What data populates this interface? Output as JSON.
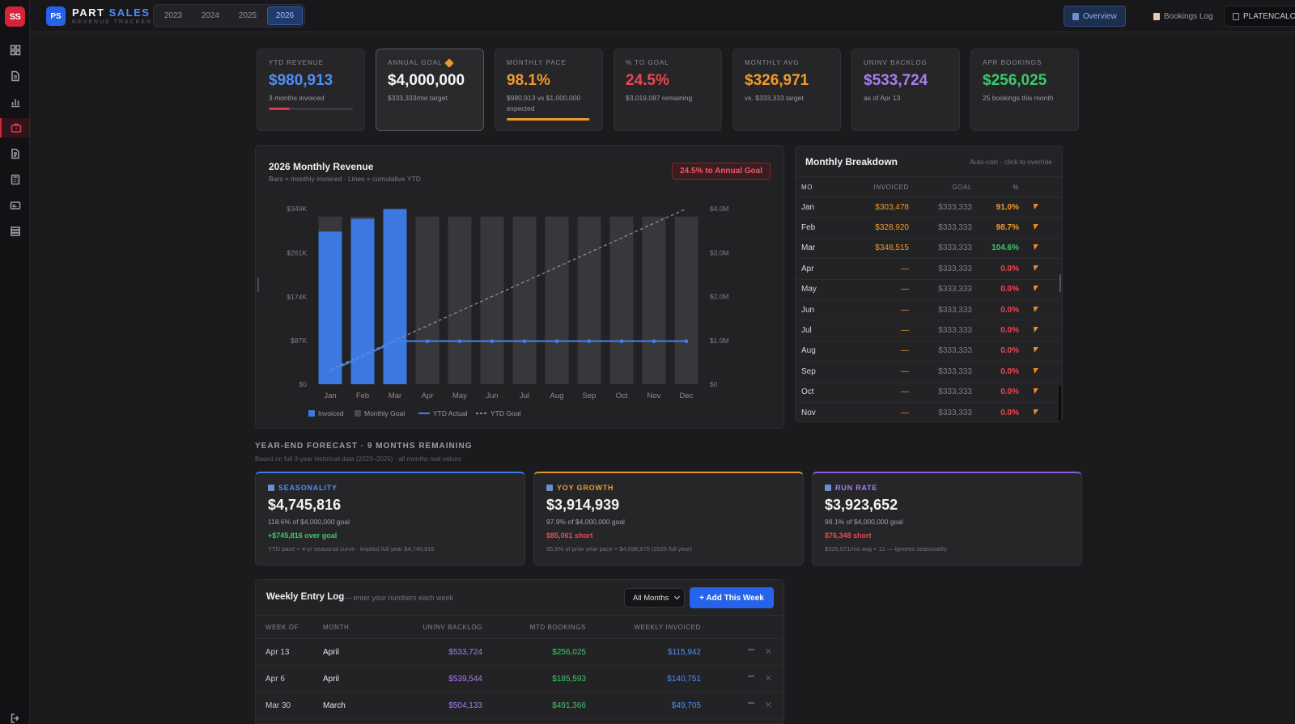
{
  "rail": {
    "logo": "SS",
    "items": [
      "grid-icon",
      "document-icon",
      "bar-chart-icon",
      "briefcase-icon",
      "file-icon",
      "calculator-icon",
      "card-icon",
      "database-icon"
    ],
    "active_index": 3,
    "bottom": "logout-icon"
  },
  "header": {
    "badge": "PS",
    "title_part1": "PART",
    "title_part2": "SALES",
    "subtitle": "REVENUE TRACKER",
    "years": [
      "2023",
      "2024",
      "2025",
      "2026"
    ],
    "active_year": "2026",
    "nav": {
      "overview": "Overview",
      "bookings": "Bookings Log",
      "platen": "PLATENCALC"
    }
  },
  "kpis": [
    {
      "label": "YTD REVENUE",
      "value": "$980,913",
      "sub": "3 months invoiced",
      "color": "#4f8df7",
      "progress": 0.25,
      "bar_color": "#e0364c"
    },
    {
      "label": "ANNUAL GOAL",
      "value": "$4,000,000",
      "sub": "$333,333/mo target",
      "color": "#f4f4f6"
    },
    {
      "label": "MONTHLY PACE",
      "value": "98.1%",
      "sub": "$980,913 vs $1,000,000 expected",
      "color": "#f09a2c",
      "progress": 0.981,
      "bar_color": "#f09a2c"
    },
    {
      "label": "% TO GOAL",
      "value": "24.5%",
      "sub": "$3,019,087 remaining",
      "color": "#ef4552"
    },
    {
      "label": "MONTHLY AVG",
      "value": "$326,971",
      "sub": "vs. $333,333 target",
      "color": "#f09a2c"
    },
    {
      "label": "UNINV BACKLOG",
      "value": "$533,724",
      "sub": "as of Apr 13",
      "color": "#a77ef0"
    },
    {
      "label": "APR BOOKINGS",
      "value": "$256,025",
      "sub": "25 bookings this month",
      "color": "#3cc96a"
    }
  ],
  "chart_panel": {
    "title": "2026 Monthly Revenue",
    "subtitle": "Bars = monthly invoiced · Lines = cumulative YTD",
    "badge": "24.5% to Annual Goal"
  },
  "chart_data": {
    "type": "bar",
    "categories": [
      "Jan",
      "Feb",
      "Mar",
      "Apr",
      "May",
      "Jun",
      "Jul",
      "Aug",
      "Sep",
      "Oct",
      "Nov",
      "Dec"
    ],
    "series": [
      {
        "name": "Invoiced",
        "type": "bar",
        "axis": "left",
        "values": [
          303478,
          328920,
          348515,
          0,
          0,
          0,
          0,
          0,
          0,
          0,
          0,
          0
        ]
      },
      {
        "name": "Monthly Goal",
        "type": "bar",
        "axis": "left",
        "values": [
          333333,
          333333,
          333333,
          333333,
          333333,
          333333,
          333333,
          333333,
          333333,
          333333,
          333333,
          333333
        ]
      },
      {
        "name": "YTD Actual",
        "type": "line",
        "axis": "right",
        "values": [
          303478,
          632398,
          980913,
          980913,
          980913,
          980913,
          980913,
          980913,
          980913,
          980913,
          980913,
          980913
        ]
      },
      {
        "name": "YTD Goal",
        "type": "line",
        "axis": "right",
        "style": "dashed",
        "values": [
          333333,
          666667,
          1000000,
          1333333,
          1666667,
          2000000,
          2333333,
          2666667,
          3000000,
          3333333,
          3666667,
          4000000
        ]
      }
    ],
    "y_left": {
      "ticks": [
        0,
        87000,
        174000,
        261000,
        349000
      ],
      "tick_labels": [
        "$0",
        "$87K",
        "$174K",
        "$261K",
        "$349K"
      ],
      "max": 349000
    },
    "y_right": {
      "ticks": [
        0,
        1000000,
        2000000,
        3000000,
        4000000
      ],
      "tick_labels": [
        "$0",
        "$1.0M",
        "$2.0M",
        "$3.0M",
        "$4.0M"
      ],
      "max": 4000000
    },
    "colors": {
      "invoiced": "#3b78e0",
      "goal": "#38383c",
      "ytd_actual": "#3b82f6",
      "ytd_goal": "#8a8a92"
    },
    "legend": [
      "Invoiced",
      "Monthly Goal",
      "YTD Actual",
      "YTD Goal"
    ],
    "legend_position": "bottom"
  },
  "breakdown": {
    "title": "Monthly Breakdown",
    "hint": "Auto-calc · click to override",
    "columns": [
      "MO",
      "INVOICED",
      "GOAL",
      "%"
    ],
    "rows": [
      {
        "mo": "Jan",
        "invoiced": "$303,478",
        "goal": "$333,333",
        "pct": "91.0%",
        "pct_color": "#f09a2c"
      },
      {
        "mo": "Feb",
        "invoiced": "$328,920",
        "goal": "$333,333",
        "pct": "98.7%",
        "pct_color": "#f09a2c"
      },
      {
        "mo": "Mar",
        "invoiced": "$348,515",
        "goal": "$333,333",
        "pct": "104.6%",
        "pct_color": "#3cc96a"
      },
      {
        "mo": "Apr",
        "invoiced": "—",
        "goal": "$333,333",
        "pct": "0.0%",
        "pct_color": "#ef4552"
      },
      {
        "mo": "May",
        "invoiced": "—",
        "goal": "$333,333",
        "pct": "0.0%",
        "pct_color": "#ef4552"
      },
      {
        "mo": "Jun",
        "invoiced": "—",
        "goal": "$333,333",
        "pct": "0.0%",
        "pct_color": "#ef4552"
      },
      {
        "mo": "Jul",
        "invoiced": "—",
        "goal": "$333,333",
        "pct": "0.0%",
        "pct_color": "#ef4552"
      },
      {
        "mo": "Aug",
        "invoiced": "—",
        "goal": "$333,333",
        "pct": "0.0%",
        "pct_color": "#ef4552"
      },
      {
        "mo": "Sep",
        "invoiced": "—",
        "goal": "$333,333",
        "pct": "0.0%",
        "pct_color": "#ef4552"
      },
      {
        "mo": "Oct",
        "invoiced": "—",
        "goal": "$333,333",
        "pct": "0.0%",
        "pct_color": "#ef4552"
      },
      {
        "mo": "Nov",
        "invoiced": "—",
        "goal": "$333,333",
        "pct": "0.0%",
        "pct_color": "#ef4552"
      }
    ]
  },
  "forecast": {
    "title": "YEAR-END FORECAST · 9 MONTHS REMAINING",
    "subtitle": "Based on full 3-year historical data (2023–2025) · all months real values",
    "cards": [
      {
        "label": "SEASONALITY",
        "label_color": "#4f8df7",
        "value": "$4,745,816",
        "line": "118.6% of $4,000,000 goal",
        "delta": "+$745,816 over goal",
        "delta_color": "#3cc96a",
        "note": "YTD pace × 4-yr seasonal curve · implied full year $4,745,816"
      },
      {
        "label": "YOY GROWTH",
        "label_color": "#f09a2c",
        "value": "$3,914,939",
        "line": "97.9% of $4,000,000 goal",
        "delta": "$85,061 short",
        "delta_color": "#ef4552",
        "note": "95.5% of prior year pace × $4,098,870 (2025 full year)"
      },
      {
        "label": "RUN RATE",
        "label_color": "#a77ef0",
        "value": "$3,923,652",
        "line": "98.1% of $4,000,000 goal",
        "delta": "$76,348 short",
        "delta_color": "#ef4552",
        "note": "$326,971/mo avg × 12 — ignores seasonality"
      }
    ]
  },
  "weekly": {
    "title": "Weekly Entry Log",
    "hint": "— enter your numbers each week",
    "filter": "All Months",
    "add_label": "+ Add This Week",
    "columns": [
      "WEEK OF",
      "MONTH",
      "UNINV BACKLOG",
      "MTD BOOKINGS",
      "WEEKLY INVOICED"
    ],
    "rows": [
      {
        "week": "Apr 13",
        "month": "April",
        "backlog": "$533,724",
        "bookings": "$256,025",
        "invoiced": "$115,942"
      },
      {
        "week": "Apr 6",
        "month": "April",
        "backlog": "$539,544",
        "bookings": "$185,593",
        "invoiced": "$140,751"
      },
      {
        "week": "Mar 30",
        "month": "March",
        "backlog": "$504,133",
        "bookings": "$491,366",
        "invoiced": "$49,705"
      }
    ]
  }
}
